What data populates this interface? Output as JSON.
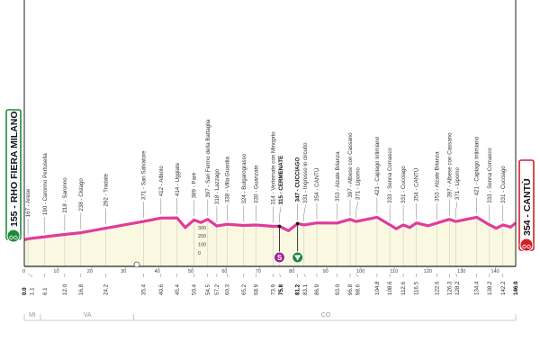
{
  "chart_data": {
    "type": "area",
    "xlabel": "",
    "ylabel": "",
    "xlim": [
      0,
      146
    ],
    "ylim": [
      0,
      450
    ],
    "grid": true,
    "x_ticks": [
      10,
      20,
      30,
      40,
      50,
      60,
      70,
      80,
      90,
      100,
      110,
      120,
      130,
      140
    ],
    "y_ticks": [
      0,
      100,
      200,
      300
    ],
    "colors": {
      "line": "#e03c9c",
      "fill": "#fbf8e1",
      "start": "#1e8a3a",
      "finish": "#d0202a",
      "sprint": "#a4218c",
      "kom": "#1e8a3a"
    },
    "start": {
      "km": "0.0",
      "elevation": 155,
      "label": "155 - RHO FIERA MILANO",
      "icon": "cyclist-icon"
    },
    "finish": {
      "km": "146.0",
      "elevation": 354,
      "label": "354 - CANTÙ",
      "icon": "cyclist-icon"
    },
    "sprint": {
      "km": 75.8,
      "label": "S"
    },
    "waypoints": [
      {
        "km": "1.1",
        "elev": 167,
        "label": "167 - Arese"
      },
      {
        "km": "6.1",
        "elev": 190,
        "label": "190 - Caronno Pertusella"
      },
      {
        "km": "12.0",
        "elev": 218,
        "label": "218 - Saronno"
      },
      {
        "km": "16.8",
        "elev": 238,
        "label": "238 - Cislago"
      },
      {
        "km": "24.2",
        "elev": 292,
        "label": "292 - Tradate"
      },
      {
        "km": "35.4",
        "elev": 371,
        "label": "371 - San Salvatore"
      },
      {
        "km": "40.6",
        "elev": 412,
        "label": "412 - Albiolo"
      },
      {
        "km": "45.4",
        "elev": 414,
        "label": "414 - Uggiate"
      },
      {
        "km": "50.4",
        "elev": 389,
        "label": "389 - Parè"
      },
      {
        "km": "54.5",
        "elev": 397,
        "label": "397 - San Fermo della Battaglia"
      },
      {
        "km": "57.2",
        "elev": 318,
        "label": "318 - Lazzago"
      },
      {
        "km": "60.3",
        "elev": 338,
        "label": "338 - Villa Guardia"
      },
      {
        "km": "65.2",
        "elev": 324,
        "label": "324 - Bulgarograsso"
      },
      {
        "km": "68.9",
        "elev": 330,
        "label": "330 - Guanzate"
      },
      {
        "km": "73.9",
        "elev": 314,
        "label": "314 - Vertemate con Minoprio"
      },
      {
        "km": "75.8",
        "elev": 315,
        "label": "315 - CERMENATE",
        "bold": true
      },
      {
        "km": "81.2",
        "elev": 347,
        "label": "347 - CUCCIAGO",
        "bold": true
      },
      {
        "km": "83.1",
        "elev": 331,
        "label": "331 - Ingresso in circuito"
      },
      {
        "km": "86.9",
        "elev": 354,
        "label": "354 - CANTÙ"
      },
      {
        "km": "93.0",
        "elev": 353,
        "label": "353 - Alzate Brianza"
      },
      {
        "km": "96.8",
        "elev": 397,
        "label": "397 - Albese con Cassano"
      },
      {
        "km": "98.6",
        "elev": 371,
        "label": "371 - Lipomo"
      },
      {
        "km": "104.8",
        "elev": 421,
        "label": "421 - Capiago Intimiano"
      },
      {
        "km": "108.6",
        "elev": 333,
        "label": "333 - Senna Comasco"
      },
      {
        "km": "112.6",
        "elev": 331,
        "label": "331 - Cucciago"
      },
      {
        "km": "116.5",
        "elev": 354,
        "label": "354 - CANTÙ"
      },
      {
        "km": "122.6",
        "elev": 353,
        "label": "353 - Alzate Brianza"
      },
      {
        "km": "126.3",
        "elev": 397,
        "label": "397 - Albese con Cassano"
      },
      {
        "km": "128.2",
        "elev": 371,
        "label": "371 - Lipomo"
      },
      {
        "km": "134.4",
        "elev": 421,
        "label": "421 - Capiago Intimiano"
      },
      {
        "km": "138.2",
        "elev": 333,
        "label": "333 - Senna Comasco"
      },
      {
        "km": "142.2",
        "elev": 331,
        "label": "331 - Cucciago"
      }
    ],
    "provinces": [
      {
        "label": "MI",
        "from": 0,
        "to": 4.8
      },
      {
        "label": "VA",
        "from": 4.8,
        "to": 32.5
      },
      {
        "label": "CO",
        "from": 32.5,
        "to": 146
      }
    ]
  }
}
